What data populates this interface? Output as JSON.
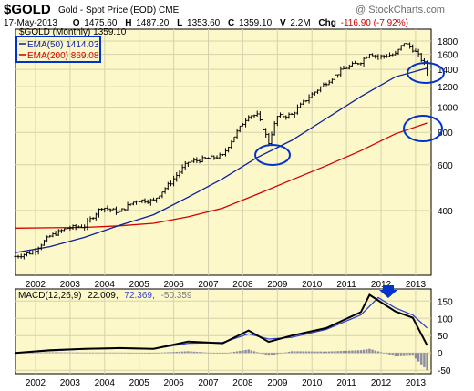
{
  "header": {
    "symbol": "$GOLD",
    "name": "Gold - Spot Price (EOD)",
    "exchange": "CME",
    "date": "17-May-2013",
    "open_label": "O",
    "open": "1475.60",
    "high_label": "H",
    "high": "1487.20",
    "low_label": "L",
    "low": "1353.60",
    "close_label": "C",
    "close": "1359.10",
    "volume_label": "V",
    "volume": "2.2M",
    "change_label": "Chg",
    "change": "-116.90 (-7.92%)"
  },
  "watermark": "@ StockCharts.com",
  "legend": {
    "main": "$GOLD (Monthly) 1359.10",
    "ema50": "EMA(50) 1414.03",
    "ema200": "EMA(200) 869.08",
    "ema50_color": "#0a1f9c",
    "ema200_color": "#d40000"
  },
  "macd_label": {
    "title": "MACD(12,26,9)",
    "macd": "22.009,",
    "signal": "72.369,",
    "hist": "-50.359"
  },
  "colors": {
    "background": "#fdf8c9",
    "grid": "#d6d2ad",
    "price_bar": "#000000",
    "annotation": "#0033cc",
    "hist": "#8c8ca0"
  },
  "chart_data": [
    {
      "type": "line",
      "title": "$GOLD (Monthly)",
      "scale": "log",
      "ylim": [
        225,
        2000
      ],
      "y_ticks": [
        400,
        600,
        800,
        1000,
        1200,
        1400,
        1600,
        1800
      ],
      "x_ticks": [
        "2002",
        "2003",
        "2004",
        "2005",
        "2006",
        "2007",
        "2008",
        "2009",
        "2010",
        "2011",
        "2012",
        "2013"
      ],
      "series": [
        {
          "name": "$GOLD (Monthly)",
          "x": [
            "2001-06",
            "2001-12",
            "2002-06",
            "2002-12",
            "2003-06",
            "2003-12",
            "2004-06",
            "2004-12",
            "2005-06",
            "2005-12",
            "2006-06",
            "2006-12",
            "2007-06",
            "2007-12",
            "2008-03",
            "2008-06",
            "2008-10",
            "2009-01",
            "2009-06",
            "2009-12",
            "2010-06",
            "2010-12",
            "2011-06",
            "2011-09",
            "2011-12",
            "2012-06",
            "2012-09",
            "2012-12",
            "2013-02",
            "2013-04",
            "2013-05"
          ],
          "values": [
            266,
            276,
            318,
            342,
            348,
            412,
            394,
            438,
            436,
            513,
            614,
            632,
            650,
            834,
            933,
            930,
            730,
            920,
            935,
            1096,
            1244,
            1405,
            1500,
            1620,
            1565,
            1600,
            1775,
            1675,
            1580,
            1476,
            1359
          ]
        },
        {
          "name": "EMA(50)",
          "x": [
            "2001-06",
            "2002-06",
            "2003-06",
            "2004-06",
            "2005-06",
            "2006-06",
            "2007-06",
            "2008-06",
            "2009-06",
            "2010-06",
            "2011-06",
            "2012-06",
            "2013-05"
          ],
          "values": [
            275,
            290,
            315,
            350,
            385,
            450,
            530,
            640,
            745,
            905,
            1100,
            1310,
            1414
          ]
        },
        {
          "name": "EMA(200)",
          "x": [
            "2001-06",
            "2002-06",
            "2003-06",
            "2004-06",
            "2005-06",
            "2006-06",
            "2007-06",
            "2008-06",
            "2009-06",
            "2010-06",
            "2011-06",
            "2012-06",
            "2013-05"
          ],
          "values": [
            342,
            343,
            344,
            349,
            357,
            378,
            408,
            462,
            525,
            595,
            680,
            790,
            869
          ]
        }
      ]
    },
    {
      "type": "line",
      "title": "MACD(12,26,9)",
      "ylim": [
        -60,
        185
      ],
      "y_ticks": [
        -50,
        0,
        50,
        100,
        150
      ],
      "x_ticks": [
        "2002",
        "2003",
        "2004",
        "2005",
        "2006",
        "2007",
        "2008",
        "2009",
        "2010",
        "2011",
        "2012",
        "2013"
      ],
      "series": [
        {
          "name": "MACD",
          "x": [
            "2001-06",
            "2002-06",
            "2003-06",
            "2004-06",
            "2005-06",
            "2006-06",
            "2007-06",
            "2008-03",
            "2008-10",
            "2009-06",
            "2010-06",
            "2011-06",
            "2011-09",
            "2012-06",
            "2012-12",
            "2013-05"
          ],
          "values": [
            0,
            8,
            12,
            14,
            12,
            33,
            28,
            65,
            32,
            50,
            72,
            118,
            168,
            120,
            102,
            22
          ]
        },
        {
          "name": "Signal",
          "x": [
            "2001-06",
            "2002-06",
            "2003-06",
            "2004-06",
            "2005-06",
            "2006-06",
            "2007-06",
            "2008-03",
            "2008-10",
            "2009-06",
            "2010-06",
            "2011-06",
            "2011-12",
            "2012-06",
            "2012-12",
            "2013-05"
          ],
          "values": [
            0,
            6,
            11,
            13,
            12,
            28,
            30,
            55,
            40,
            45,
            68,
            110,
            160,
            130,
            110,
            72
          ]
        },
        {
          "name": "Histogram",
          "x": [
            "2001-06",
            "2002-06",
            "2003-06",
            "2004-06",
            "2005-06",
            "2006-06",
            "2007-06",
            "2008-03",
            "2008-10",
            "2009-06",
            "2010-06",
            "2011-06",
            "2011-09",
            "2012-06",
            "2012-12",
            "2013-05"
          ],
          "values": [
            0,
            2,
            1,
            1,
            0,
            5,
            -2,
            10,
            -8,
            5,
            4,
            8,
            12,
            -10,
            -8,
            -50
          ]
        }
      ]
    }
  ]
}
